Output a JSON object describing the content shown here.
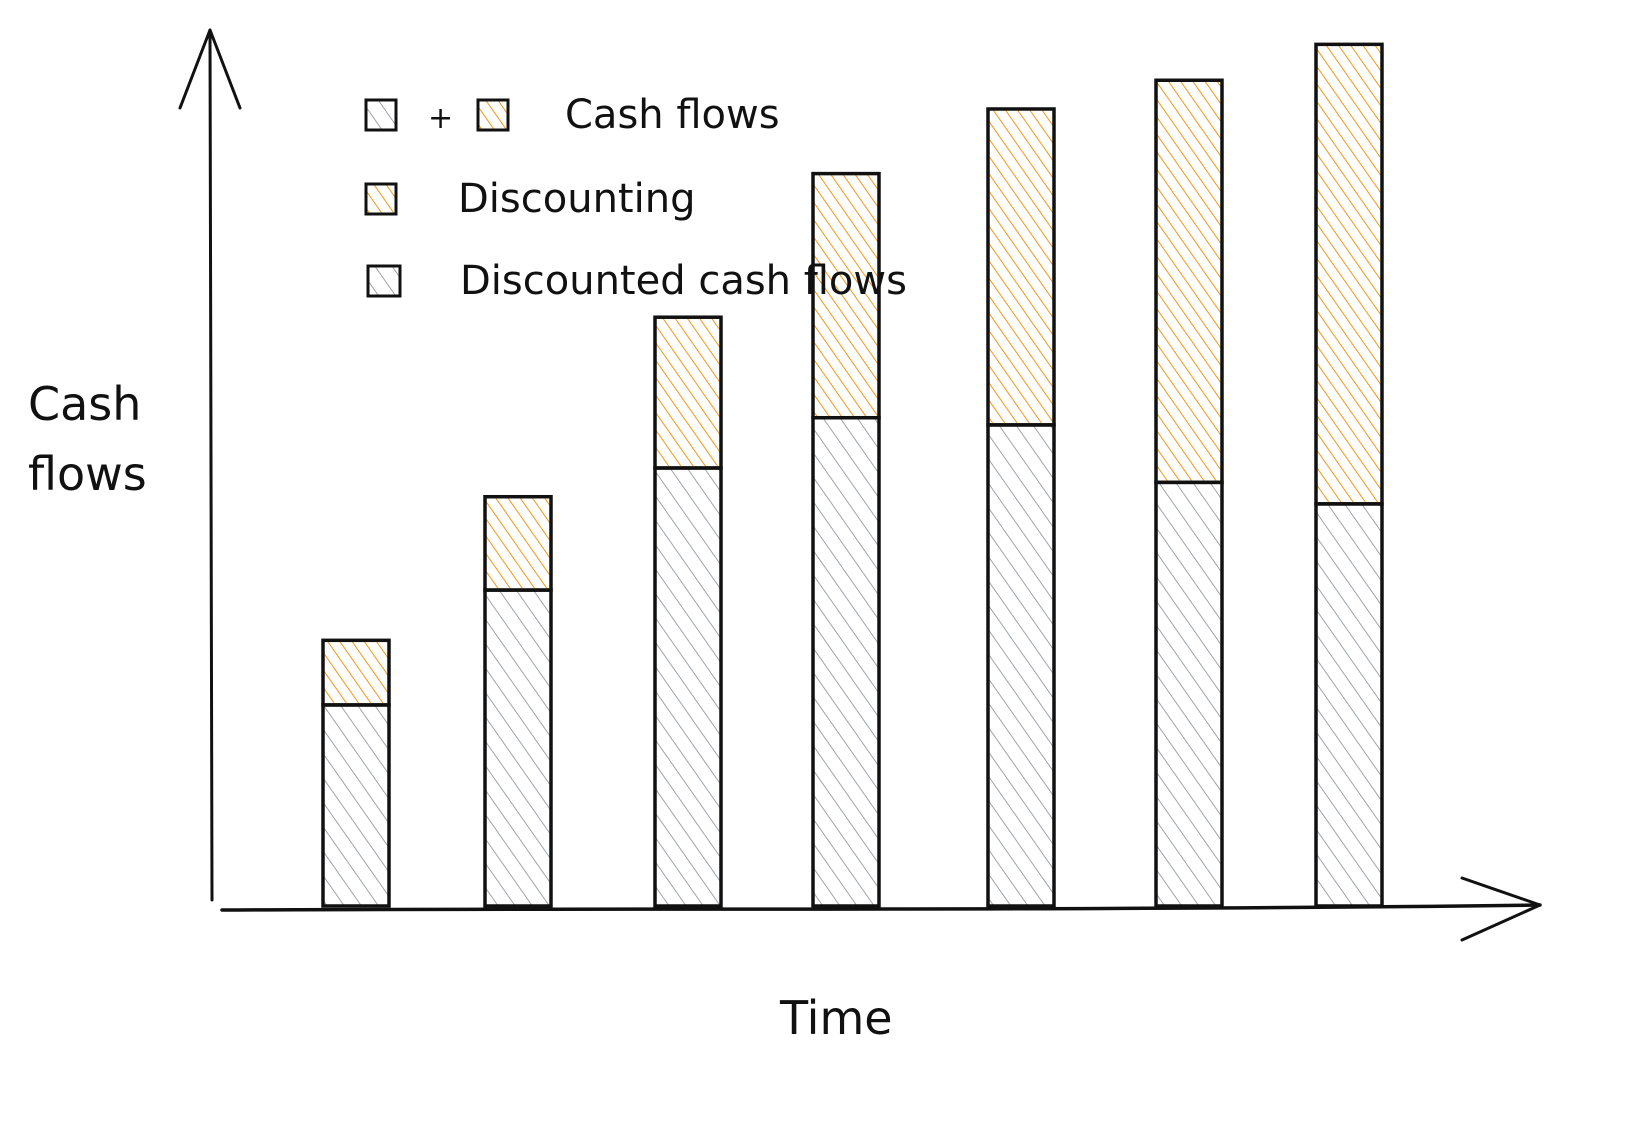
{
  "chart_data": {
    "type": "bar",
    "stacked": true,
    "xlabel": "Time",
    "ylabel": "Cash flows",
    "ylabel_lines": [
      "Cash",
      "flows"
    ],
    "categories": [
      "",
      "",
      "",
      "",
      "",
      "",
      ""
    ],
    "series": [
      {
        "key": "discounted",
        "values": [
          28,
          44,
          61,
          68,
          67,
          59,
          56
        ]
      },
      {
        "key": "discounting",
        "values": [
          9,
          13,
          21,
          34,
          44,
          56,
          64
        ]
      }
    ],
    "ylim": [
      0,
      122
    ],
    "grid": false,
    "legend_position": "top-left",
    "legend": [
      {
        "swatches": [
          "discounted",
          "discounting"
        ],
        "joiner": "+",
        "label": "Cash flows"
      },
      {
        "swatches": [
          "discounting"
        ],
        "joiner": "",
        "label": "Discounting"
      },
      {
        "swatches": [
          "discounted"
        ],
        "joiner": "",
        "label": "Discounted cash flows"
      }
    ],
    "colors": {
      "discounted": "#868e96",
      "discounting": "#f08c00",
      "outline": "#111111"
    }
  }
}
